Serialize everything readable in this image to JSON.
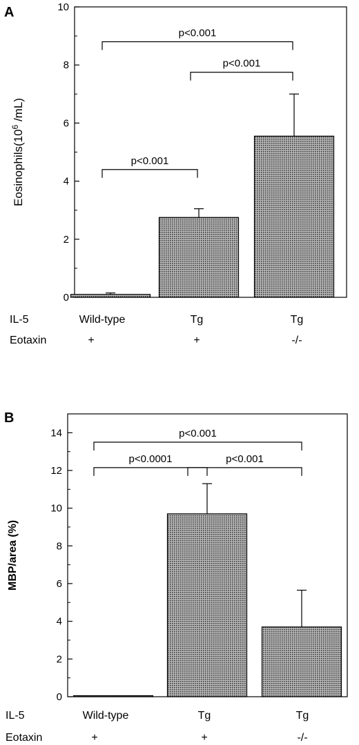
{
  "chart_data": [
    {
      "type": "bar",
      "panel_label": "A",
      "ylabel": "Eosinophils(10",
      "ylabel_exp": "6",
      "ylabel_unit": " /mL)",
      "ylim": [
        0,
        10
      ],
      "yticks": [
        "0",
        "2",
        "4",
        "6",
        "8",
        "10"
      ],
      "row_labels": [
        "IL-5",
        "Eotaxin"
      ],
      "categories": [
        {
          "il5": "Wild-type",
          "eotaxin": "+"
        },
        {
          "il5": "Tg",
          "eotaxin": "+"
        },
        {
          "il5": "Tg",
          "eotaxin": "-/-"
        }
      ],
      "values": [
        0.1,
        2.75,
        5.55
      ],
      "errors": [
        0.05,
        0.3,
        1.45
      ],
      "comparisons": [
        {
          "from": 0,
          "to": 1,
          "label": "p<0.001",
          "y": 4.4
        },
        {
          "from": 1,
          "to": 2,
          "label": "p<0.001",
          "y": 7.75
        },
        {
          "from": 0,
          "to": 2,
          "label": "p<0.001",
          "y": 8.8
        }
      ]
    },
    {
      "type": "bar",
      "panel_label": "B",
      "ylabel": "MBP/area (%)",
      "ylim": [
        0,
        15
      ],
      "yticks": [
        "0",
        "2",
        "4",
        "6",
        "8",
        "10",
        "12",
        "14"
      ],
      "row_labels": [
        "IL-5",
        "Eotaxin"
      ],
      "categories": [
        {
          "il5": "Wild-type",
          "eotaxin": "+"
        },
        {
          "il5": "Tg",
          "eotaxin": "+"
        },
        {
          "il5": "Tg",
          "eotaxin": "-/-"
        }
      ],
      "values": [
        0.05,
        9.7,
        3.7
      ],
      "errors": [
        0,
        1.6,
        1.95
      ],
      "comparisons": [
        {
          "from": 0,
          "to": 1,
          "label": "p<0.0001",
          "y": 12.15
        },
        {
          "from": 1,
          "to": 2,
          "label": "p<0.001",
          "y": 12.15
        },
        {
          "from": 0,
          "to": 2,
          "label": "p<0.001",
          "y": 13.5
        }
      ]
    }
  ],
  "colors": {
    "bar_fill": "#8a8a8a",
    "stroke": "#000000"
  }
}
